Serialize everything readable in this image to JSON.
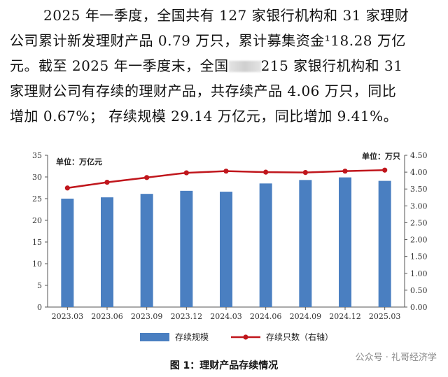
{
  "paragraph": {
    "lines": [
      "2025 年一季度，全国共有 127 家银行机构和 31 家理财",
      "公司累计新发理财产品 0.79 万只，累计募集资金¹18.28 万亿",
      "元。截至 2025 年一季度末，全国",
      "215 家银行机构和 31",
      "家理财公司有存续的理财产品，共存续产品 4.06 万只，同比",
      "增加 0.67%； 存续规模 29.14 万亿元，同比增加 9.41%。"
    ]
  },
  "chart_data": {
    "type": "bar+line",
    "categories": [
      "2023.03",
      "2023.06",
      "2023.09",
      "2023.12",
      "2024.03",
      "2024.06",
      "2024.09",
      "2024.12",
      "2025.03"
    ],
    "series": [
      {
        "name": "存续规模",
        "type": "bar",
        "axis": "left",
        "values": [
          25.0,
          25.3,
          26.1,
          26.8,
          26.6,
          28.5,
          29.3,
          29.9,
          29.1
        ]
      },
      {
        "name": "存续只数（右轴）",
        "type": "line",
        "axis": "right",
        "values": [
          3.53,
          3.7,
          3.84,
          3.98,
          4.03,
          4.0,
          3.99,
          4.03,
          4.06
        ]
      }
    ],
    "left_unit": "单位：万亿元",
    "right_unit": "单位：万只",
    "ylim_left": [
      0,
      35
    ],
    "ylim_right": [
      0,
      4.5
    ],
    "yticks_left": [
      "0",
      "5",
      "10",
      "15",
      "20",
      "25",
      "30",
      "35"
    ],
    "yticks_right": [
      "0.00",
      "0.50",
      "1.00",
      "1.50",
      "2.00",
      "2.50",
      "3.00",
      "3.50",
      "4.00",
      "4.50"
    ],
    "legend_position": "bottom",
    "grid": false,
    "colors": {
      "bar": "#4a7fc1",
      "line": "#c0161c",
      "axis": "#555555"
    }
  },
  "caption": "图 1：理财产品存续情况",
  "watermark": "公众号 · 礼哥经济学"
}
